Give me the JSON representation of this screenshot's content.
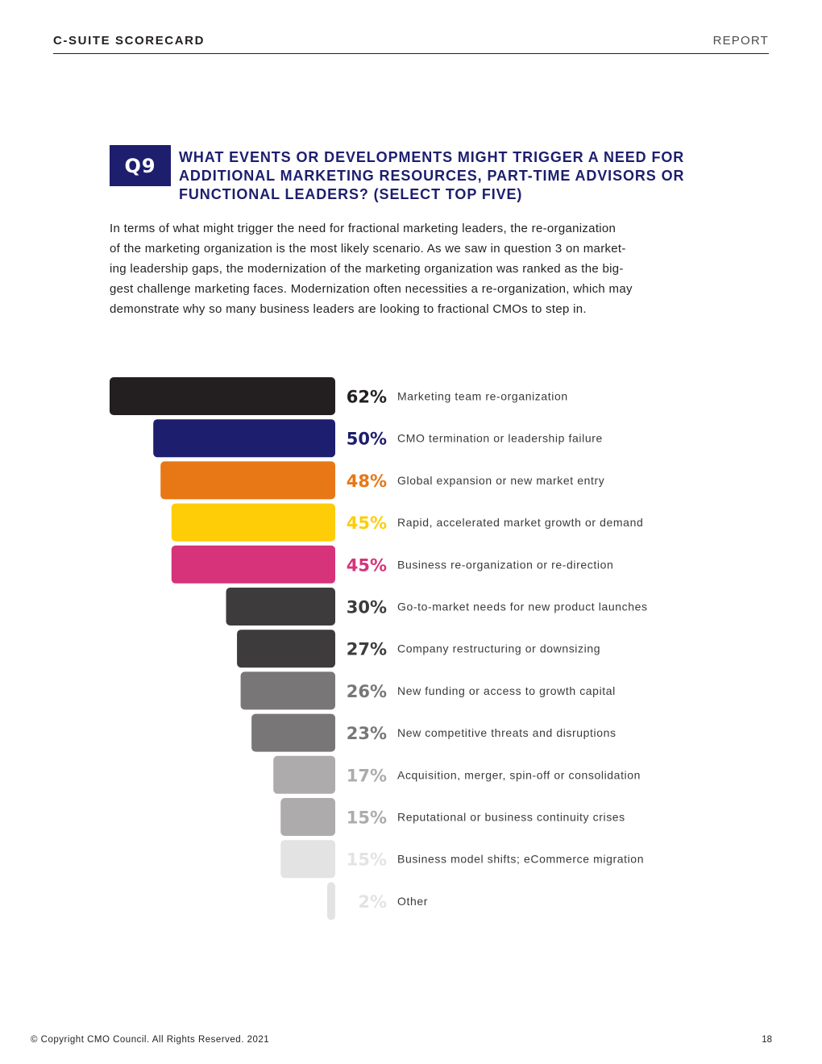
{
  "header": {
    "left": "C-SUITE SCORECARD",
    "right": "REPORT"
  },
  "question": {
    "badge": "Q9",
    "title_lines": [
      "WHAT EVENTS OR DEVELOPMENTS MIGHT TRIGGER A NEED FOR",
      "ADDITIONAL MARKETING RESOURCES, PART-TIME ADVISORS OR",
      "FUNCTIONAL LEADERS? (SELECT TOP FIVE)"
    ]
  },
  "intro_lines": [
    "In terms of what might trigger the need for fractional marketing leaders, the re-organization",
    "of the marketing organization is the most likely scenario. As we saw in question 3 on market-",
    "ing leadership gaps, the modernization of the marketing organization was ranked as the big-",
    "gest challenge marketing faces. Modernization often necessities a re-organization, which may",
    "demonstrate why so many business leaders are looking to fractional CMOs to step in."
  ],
  "chart_data": {
    "type": "bar",
    "orientation": "horizontal",
    "bars_extend": "left",
    "value_unit": "%",
    "xlim": [
      0,
      62
    ],
    "categories": [
      "Marketing team re-organization",
      "CMO termination or leadership failure",
      "Global expansion or new market entry",
      "Rapid, accelerated market growth or demand",
      "Business re-organization or re-direction",
      "Go-to-market needs for new product launches",
      "Company restructuring or downsizing",
      "New funding or access to growth capital",
      "New competitive threats and disruptions",
      "Acquisition, merger, spin-off or consolidation",
      "Reputational or business continuity crises",
      "Business model shifts; eCommerce migration",
      "Other"
    ],
    "values": [
      62,
      50,
      48,
      45,
      45,
      30,
      27,
      26,
      23,
      17,
      15,
      15,
      2
    ],
    "value_labels": [
      "62%",
      "50%",
      "48%",
      "45%",
      "45%",
      "30%",
      "27%",
      "26%",
      "23%",
      "17%",
      "15%",
      "15%",
      "2%"
    ],
    "bar_colors": [
      "#231f20",
      "#1d1e6e",
      "#e87716",
      "#fecd08",
      "#d6337a",
      "#3e3b3c",
      "#3e3b3c",
      "#787677",
      "#787677",
      "#adabac",
      "#adabac",
      "#e3e3e3",
      "#e3e3e3"
    ],
    "value_colors": [
      "#231f20",
      "#1d1e6e",
      "#e87716",
      "#fecd08",
      "#d6337a",
      "#3e3b3c",
      "#3e3b3c",
      "#787677",
      "#787677",
      "#adabac",
      "#adabac",
      "#e3e3e3",
      "#e3e3e3"
    ],
    "grid": false,
    "legend": "none"
  },
  "footer": {
    "copyright": "© Copyright CMO Council. All Rights Reserved. 2021",
    "page_number": "18"
  }
}
